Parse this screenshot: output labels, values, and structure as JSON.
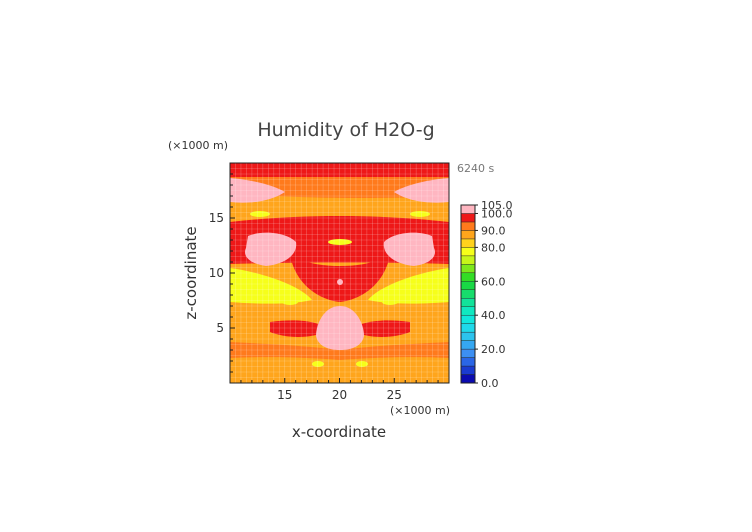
{
  "chart_data": {
    "type": "heatmap",
    "title": "Humidity of H2O-g",
    "xlabel": "x-coordinate",
    "ylabel": "z-coordinate",
    "x_unit": "(×1000 m)",
    "y_unit": "(×1000 m)",
    "time_label": "6240 s",
    "xlim": [
      10,
      30
    ],
    "ylim": [
      0,
      20
    ],
    "x_ticks": [
      15,
      20,
      25
    ],
    "y_ticks": [
      5,
      10,
      15
    ],
    "colorbar": {
      "ticks": [
        {
          "value": 0,
          "label": "0.0"
        },
        {
          "value": 20,
          "label": "20.0"
        },
        {
          "value": 40,
          "label": "40.0"
        },
        {
          "value": 60,
          "label": "60.0"
        },
        {
          "value": 80,
          "label": "80.0"
        },
        {
          "value": 90,
          "label": "90.0"
        },
        {
          "value": 100,
          "label": "100.0"
        },
        {
          "value": 105,
          "label": "105.0"
        }
      ],
      "levels": [
        {
          "from": 0,
          "to": 5,
          "color": "#0b0bb0"
        },
        {
          "from": 5,
          "to": 10,
          "color": "#1a3bd0"
        },
        {
          "from": 10,
          "to": 15,
          "color": "#2a66e6"
        },
        {
          "from": 15,
          "to": 20,
          "color": "#3c8ff2"
        },
        {
          "from": 20,
          "to": 25,
          "color": "#35a7f2"
        },
        {
          "from": 25,
          "to": 30,
          "color": "#2cc3ee"
        },
        {
          "from": 30,
          "to": 35,
          "color": "#1fd9ea"
        },
        {
          "from": 35,
          "to": 40,
          "color": "#11e7dc"
        },
        {
          "from": 40,
          "to": 45,
          "color": "#10e8c0"
        },
        {
          "from": 45,
          "to": 50,
          "color": "#12e39a"
        },
        {
          "from": 50,
          "to": 55,
          "color": "#17dd6c"
        },
        {
          "from": 55,
          "to": 60,
          "color": "#19d845"
        },
        {
          "from": 60,
          "to": 65,
          "color": "#33dd25"
        },
        {
          "from": 65,
          "to": 70,
          "color": "#7de81c"
        },
        {
          "from": 70,
          "to": 75,
          "color": "#c7f51a"
        },
        {
          "from": 75,
          "to": 80,
          "color": "#f6ff1a"
        },
        {
          "from": 80,
          "to": 85,
          "color": "#ffd21c"
        },
        {
          "from": 85,
          "to": 90,
          "color": "#ffa51c"
        },
        {
          "from": 90,
          "to": 95,
          "color": "#ff7a1c"
        },
        {
          "from": 95,
          "to": 100,
          "color": "#ee1818"
        },
        {
          "from": 100,
          "to": 105,
          "color": "#ffb6c1"
        }
      ]
    }
  }
}
